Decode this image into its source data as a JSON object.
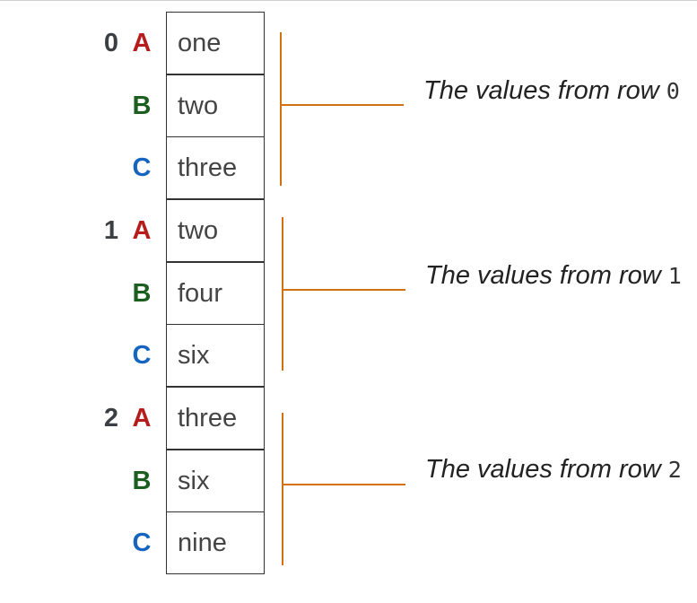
{
  "colors": {
    "A": "#b71c1c",
    "B": "#1b5e20",
    "C": "#1565c0",
    "index": "#3b3f44",
    "bracket": "#d4700f"
  },
  "groups": [
    {
      "index": "0",
      "rows": [
        {
          "label": "A",
          "value": "one"
        },
        {
          "label": "B",
          "value": "two"
        },
        {
          "label": "C",
          "value": "three"
        }
      ],
      "note_text": "The values from row",
      "note_row": "0"
    },
    {
      "index": "1",
      "rows": [
        {
          "label": "A",
          "value": "two"
        },
        {
          "label": "B",
          "value": "four"
        },
        {
          "label": "C",
          "value": "six"
        }
      ],
      "note_text": "The values from row",
      "note_row": "1"
    },
    {
      "index": "2",
      "rows": [
        {
          "label": "A",
          "value": "three"
        },
        {
          "label": "B",
          "value": "six"
        },
        {
          "label": "C",
          "value": "nine"
        }
      ],
      "note_text": "The values from row",
      "note_row": "2"
    }
  ]
}
